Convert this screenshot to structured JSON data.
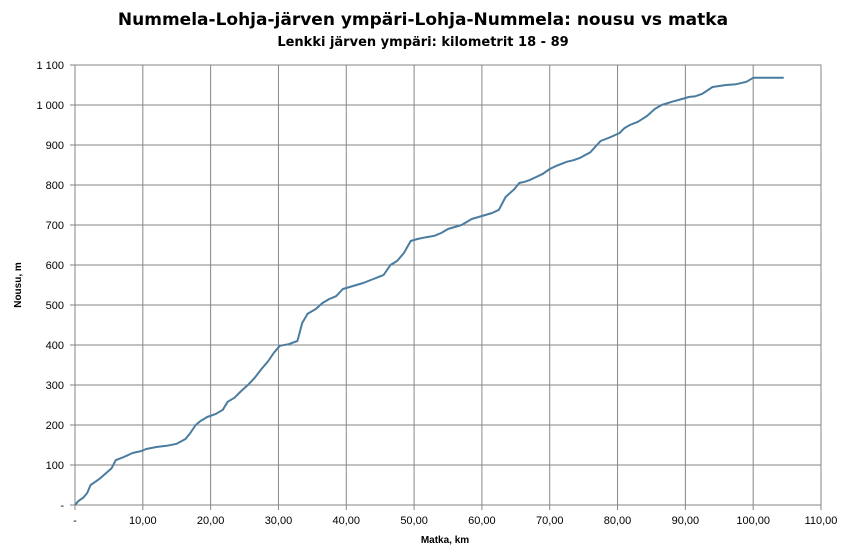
{
  "chart_data": {
    "type": "line",
    "title": "Nummela-Lohja-järven ympäri-Lohja-Nummela: nousu vs matka",
    "subtitle": "Lenkki järven ympäri: kilometrit 18 - 89",
    "xlabel": "Matka, km",
    "ylabel": "Nousu, m",
    "xlim": [
      0,
      110
    ],
    "ylim": [
      0,
      1100
    ],
    "x_ticks": [
      "-",
      "10,00",
      "20,00",
      "30,00",
      "40,00",
      "50,00",
      "60,00",
      "70,00",
      "80,00",
      "90,00",
      "100,00",
      "110,00"
    ],
    "y_ticks": [
      "-",
      "100",
      "200",
      "300",
      "400",
      "500",
      "600",
      "700",
      "800",
      "900",
      "1 000",
      "1 100"
    ],
    "grid": true,
    "legend": "none",
    "series_color": "#4a7ca0",
    "series": [
      {
        "x": [
          0,
          0.5,
          1.2,
          1.8,
          2.3,
          3.0,
          3.8,
          4.6,
          5.4,
          6.0,
          7.2,
          8.5,
          9.8,
          10.5,
          12.0,
          13.5,
          15.0,
          16.3,
          17.0,
          17.8,
          18.5,
          19.5,
          20.8,
          21.8,
          22.5,
          23.5,
          24.5,
          25.5,
          26.5,
          27.5,
          28.5,
          29.3,
          30.2,
          31.5,
          32.8,
          33.5,
          34.3,
          35.5,
          36.5,
          37.5,
          38.5,
          39.5,
          40.5,
          41.5,
          42.5,
          44.0,
          45.5,
          46.5,
          47.5,
          48.5,
          49.5,
          50.5,
          51.3,
          52.0,
          53.0,
          54.0,
          55.0,
          57.0,
          58.5,
          59.5,
          60.5,
          61.5,
          62.5,
          63.5,
          64.8,
          65.5,
          66.3,
          67.0,
          68.0,
          69.0,
          70.0,
          71.0,
          72.5,
          73.5,
          74.5,
          76.0,
          77.5,
          79.0,
          80.3,
          81.0,
          81.8,
          83.0,
          84.3,
          85.5,
          86.5,
          88.0,
          89.5,
          90.5,
          91.5,
          92.5,
          94.0,
          96.0,
          97.5,
          99.0,
          100.0,
          101.5,
          103.5,
          104.0,
          104.5
        ],
        "y": [
          0,
          10,
          18,
          30,
          50,
          58,
          68,
          80,
          92,
          112,
          120,
          130,
          135,
          140,
          145,
          148,
          153,
          165,
          180,
          200,
          210,
          220,
          228,
          238,
          258,
          268,
          285,
          300,
          318,
          340,
          360,
          380,
          398,
          402,
          410,
          455,
          478,
          490,
          505,
          515,
          522,
          540,
          545,
          550,
          555,
          565,
          575,
          600,
          610,
          630,
          660,
          665,
          668,
          670,
          673,
          680,
          690,
          700,
          715,
          720,
          725,
          730,
          738,
          770,
          790,
          805,
          808,
          812,
          820,
          828,
          840,
          848,
          858,
          862,
          868,
          882,
          910,
          920,
          930,
          942,
          950,
          958,
          972,
          990,
          1000,
          1008,
          1015,
          1020,
          1022,
          1028,
          1045,
          1050,
          1052,
          1058,
          1068,
          1068,
          1068,
          1068,
          1068
        ]
      }
    ]
  }
}
